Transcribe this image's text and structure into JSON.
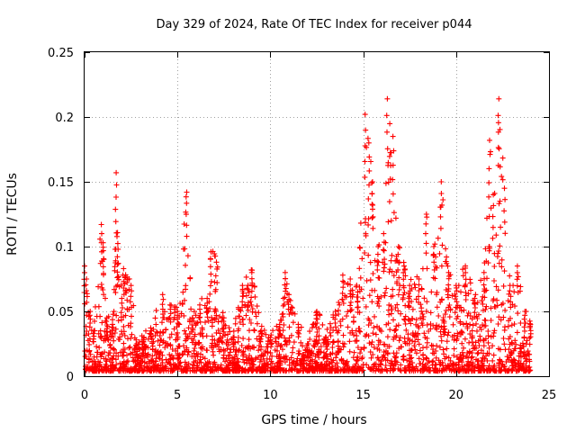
{
  "chart_data": {
    "type": "scatter",
    "title": "Day 329 of 2024, Rate Of TEC Index for receiver p044",
    "xlabel": "GPS time / hours",
    "ylabel": "ROTI / TECUs",
    "xlim": [
      0,
      25
    ],
    "ylim": [
      0,
      0.25
    ],
    "x_ticks": [
      0,
      5,
      10,
      15,
      20,
      25
    ],
    "x_tick_labels": [
      "0",
      "5",
      "10",
      "15",
      "20",
      "25"
    ],
    "y_ticks": [
      0,
      0.05,
      0.1,
      0.15,
      0.2,
      0.25
    ],
    "y_tick_labels": [
      "0",
      "0.05",
      "0.1",
      "0.15",
      "0.2",
      "0.25"
    ],
    "grid": true,
    "marker": "plus",
    "color": "#ff0000",
    "series": [
      {
        "name": "ROTI",
        "envelope": [
          {
            "x": 0.0,
            "y": 0.085
          },
          {
            "x": 0.1,
            "y": 0.075
          },
          {
            "x": 0.3,
            "y": 0.05
          },
          {
            "x": 0.5,
            "y": 0.035
          },
          {
            "x": 0.9,
            "y": 0.117
          },
          {
            "x": 1.0,
            "y": 0.103
          },
          {
            "x": 1.2,
            "y": 0.045
          },
          {
            "x": 1.5,
            "y": 0.04
          },
          {
            "x": 1.7,
            "y": 0.157
          },
          {
            "x": 1.8,
            "y": 0.098
          },
          {
            "x": 2.0,
            "y": 0.06
          },
          {
            "x": 2.1,
            "y": 0.083
          },
          {
            "x": 2.5,
            "y": 0.07
          },
          {
            "x": 2.8,
            "y": 0.025
          },
          {
            "x": 3.2,
            "y": 0.03
          },
          {
            "x": 3.6,
            "y": 0.035
          },
          {
            "x": 4.2,
            "y": 0.063
          },
          {
            "x": 4.6,
            "y": 0.055
          },
          {
            "x": 5.0,
            "y": 0.05
          },
          {
            "x": 5.5,
            "y": 0.142
          },
          {
            "x": 5.8,
            "y": 0.045
          },
          {
            "x": 6.2,
            "y": 0.055
          },
          {
            "x": 6.6,
            "y": 0.06
          },
          {
            "x": 6.8,
            "y": 0.096
          },
          {
            "x": 7.1,
            "y": 0.088
          },
          {
            "x": 7.5,
            "y": 0.045
          },
          {
            "x": 8.0,
            "y": 0.03
          },
          {
            "x": 8.5,
            "y": 0.07
          },
          {
            "x": 9.0,
            "y": 0.08
          },
          {
            "x": 9.5,
            "y": 0.035
          },
          {
            "x": 10.0,
            "y": 0.03
          },
          {
            "x": 10.5,
            "y": 0.04
          },
          {
            "x": 10.8,
            "y": 0.08
          },
          {
            "x": 11.0,
            "y": 0.063
          },
          {
            "x": 11.5,
            "y": 0.04
          },
          {
            "x": 12.0,
            "y": 0.025
          },
          {
            "x": 12.5,
            "y": 0.05
          },
          {
            "x": 13.0,
            "y": 0.03
          },
          {
            "x": 13.5,
            "y": 0.05
          },
          {
            "x": 13.9,
            "y": 0.078
          },
          {
            "x": 14.3,
            "y": 0.075
          },
          {
            "x": 14.7,
            "y": 0.065
          },
          {
            "x": 15.1,
            "y": 0.202
          },
          {
            "x": 15.3,
            "y": 0.18
          },
          {
            "x": 15.5,
            "y": 0.15
          },
          {
            "x": 15.8,
            "y": 0.1
          },
          {
            "x": 16.1,
            "y": 0.11
          },
          {
            "x": 16.3,
            "y": 0.214
          },
          {
            "x": 16.6,
            "y": 0.185
          },
          {
            "x": 16.9,
            "y": 0.1
          },
          {
            "x": 17.2,
            "y": 0.085
          },
          {
            "x": 17.5,
            "y": 0.07
          },
          {
            "x": 18.0,
            "y": 0.075
          },
          {
            "x": 18.4,
            "y": 0.125
          },
          {
            "x": 18.8,
            "y": 0.1
          },
          {
            "x": 19.2,
            "y": 0.15
          },
          {
            "x": 19.6,
            "y": 0.08
          },
          {
            "x": 20.0,
            "y": 0.07
          },
          {
            "x": 20.5,
            "y": 0.085
          },
          {
            "x": 21.0,
            "y": 0.06
          },
          {
            "x": 21.5,
            "y": 0.08
          },
          {
            "x": 21.8,
            "y": 0.182
          },
          {
            "x": 22.0,
            "y": 0.14
          },
          {
            "x": 22.3,
            "y": 0.214
          },
          {
            "x": 22.6,
            "y": 0.145
          },
          {
            "x": 22.9,
            "y": 0.07
          },
          {
            "x": 23.3,
            "y": 0.085
          },
          {
            "x": 23.7,
            "y": 0.05
          },
          {
            "x": 24.0,
            "y": 0.04
          }
        ]
      }
    ]
  }
}
